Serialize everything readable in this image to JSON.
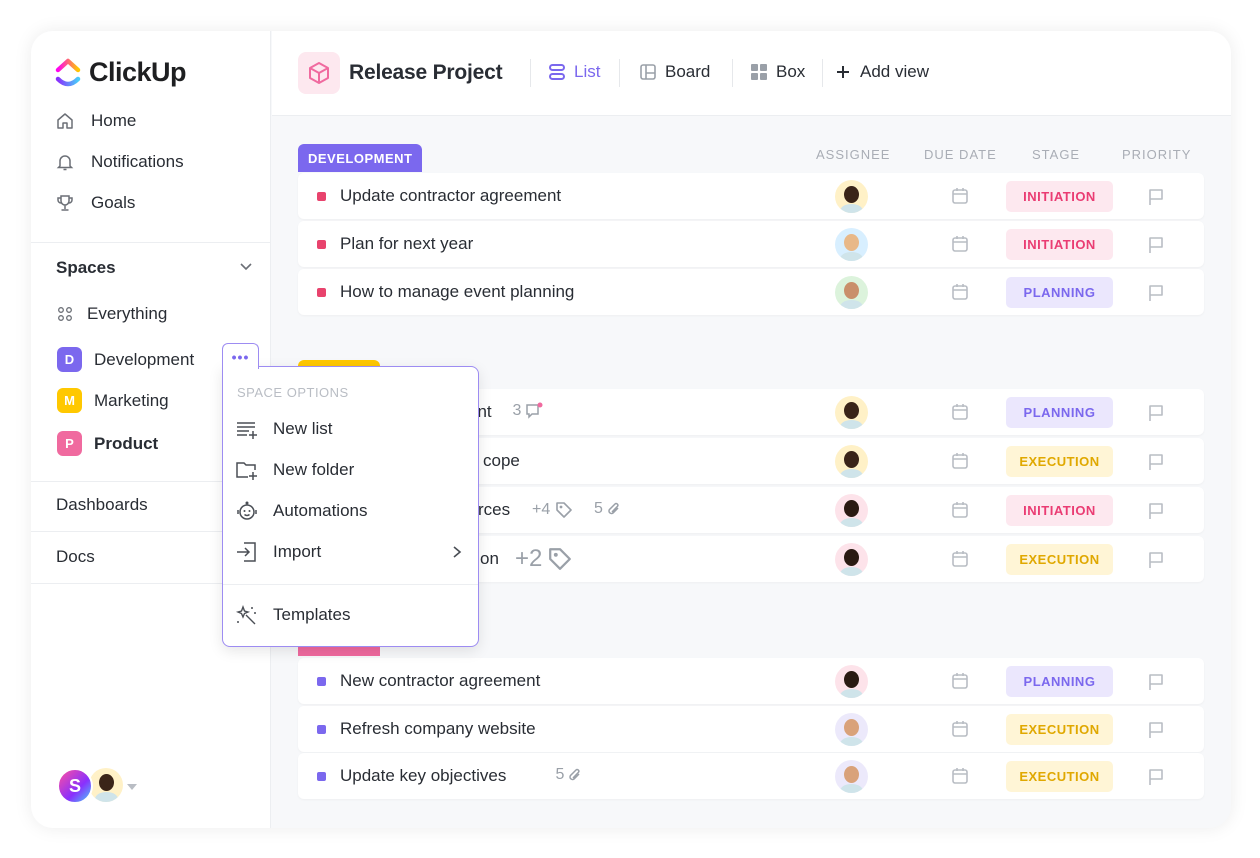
{
  "app": {
    "name": "ClickUp"
  },
  "sidebar": {
    "nav": [
      {
        "label": "Home",
        "icon": "home-icon"
      },
      {
        "label": "Notifications",
        "icon": "bell-icon"
      },
      {
        "label": "Goals",
        "icon": "trophy-icon"
      }
    ],
    "spaces_label": "Spaces",
    "everything_label": "Everything",
    "spaces": [
      {
        "letter": "D",
        "label": "Development",
        "color": "#7b68ee"
      },
      {
        "letter": "M",
        "label": "Marketing",
        "color": "#ffc800"
      },
      {
        "letter": "P",
        "label": "Product",
        "color": "#f06a9f"
      }
    ],
    "dashboards_label": "Dashboards",
    "docs_label": "Docs",
    "user_initial": "S"
  },
  "header": {
    "project_title": "Release Project",
    "views": [
      {
        "label": "List",
        "active": true
      },
      {
        "label": "Board"
      },
      {
        "label": "Box"
      }
    ],
    "add_view_label": "Add view"
  },
  "columns": {
    "assignee": "ASSIGNEE",
    "due_date": "DUE DATE",
    "stage": "STAGE",
    "priority": "PRIORITY"
  },
  "stage_colors": {
    "INITIATION": {
      "bg": "#fde8ef",
      "fg": "#ea3c73"
    },
    "PLANNING": {
      "bg": "#ebe7fd",
      "fg": "#7b68ee"
    },
    "EXECUTION": {
      "bg": "#fff5d6",
      "fg": "#e0a800"
    }
  },
  "groups": [
    {
      "label": "DEVELOPMENT",
      "color": "#7b68ee",
      "dot": "#e8436d",
      "tasks": [
        {
          "name": "Update contractor agreement",
          "stage": "INITIATION",
          "avatar": "#fff1c7"
        },
        {
          "name": "Plan for next year",
          "stage": "INITIATION",
          "avatar": "#d8efff"
        },
        {
          "name": "How to manage event planning",
          "stage": "PLANNING",
          "avatar": "#dcf3dc"
        }
      ]
    },
    {
      "label": "",
      "color": "#ffc800",
      "dot": "#e8436d",
      "tasks": [
        {
          "name": "ent",
          "comments": "3",
          "stage": "PLANNING",
          "avatar": "#fff1c7"
        },
        {
          "name": "cope",
          "stage": "EXECUTION",
          "avatar": "#fff1c7"
        },
        {
          "name": "rces",
          "tags": "+4",
          "attachments": "5",
          "stage": "INITIATION",
          "avatar": "#fde3ea"
        },
        {
          "name": "on",
          "tags": "+2",
          "stage": "EXECUTION",
          "avatar": "#fde3ea"
        }
      ]
    },
    {
      "label": "",
      "color": "#f06a9f",
      "dot": "#7b68ee",
      "tasks": [
        {
          "name": "New contractor agreement",
          "stage": "PLANNING",
          "avatar": "#fde3ea"
        },
        {
          "name": "Refresh company website",
          "stage": "EXECUTION",
          "avatar": "#ece9fb"
        },
        {
          "name": "Update key objectives",
          "attachments": "5",
          "stage": "EXECUTION",
          "avatar": "#ece9fb"
        }
      ]
    }
  ],
  "space_menu": {
    "heading": "SPACE OPTIONS",
    "items": [
      {
        "label": "New list",
        "icon": "new-list-icon"
      },
      {
        "label": "New folder",
        "icon": "new-folder-icon"
      },
      {
        "label": "Automations",
        "icon": "robot-icon"
      },
      {
        "label": "Import",
        "icon": "import-icon",
        "submenu": true
      },
      {
        "label": "Templates",
        "icon": "magic-wand-icon"
      }
    ]
  }
}
